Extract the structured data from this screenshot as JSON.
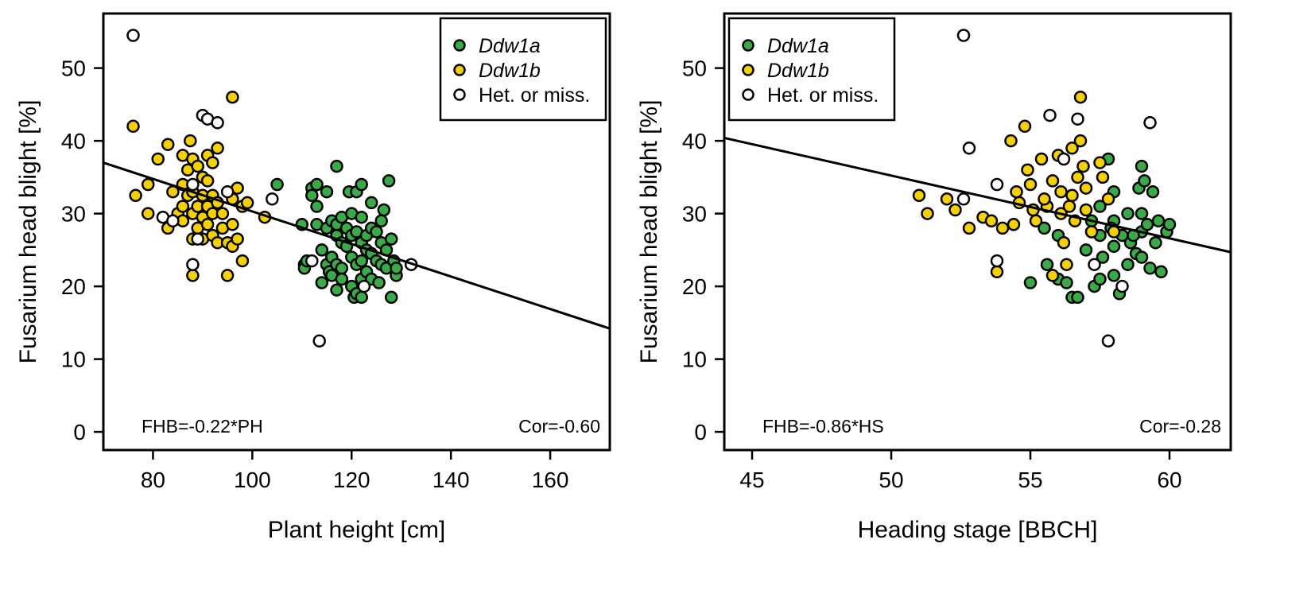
{
  "colors": {
    "Ddw1a": "#3aaa48",
    "Ddw1b": "#f5d000",
    "het": "#ffffff",
    "stroke": "#000000"
  },
  "chart_data": [
    {
      "type": "scatter",
      "xlabel": "Plant height [cm]",
      "ylabel": "Fusarium head blight [%]",
      "xlim": [
        70,
        172
      ],
      "ylim": [
        -2.5,
        57.5
      ],
      "xticks": [
        80,
        100,
        120,
        140,
        160
      ],
      "yticks": [
        0,
        10,
        20,
        30,
        40,
        50
      ],
      "legend": {
        "position": "top-right",
        "entries": [
          {
            "label": "Ddw1a",
            "italic": true,
            "series": "Ddw1a"
          },
          {
            "label": "Ddw1b",
            "italic": true,
            "series": "Ddw1b"
          },
          {
            "label": "Het. or miss.",
            "italic": false,
            "series": "het"
          }
        ]
      },
      "annotations": {
        "equation": "FHB=-0.22*PH",
        "correlation": "Cor=-0.60"
      },
      "regression": {
        "x": [
          70,
          172
        ],
        "y": [
          37.0,
          14.2
        ]
      },
      "series": [
        {
          "key": "Ddw1a",
          "points": [
            [
              105,
              34
            ],
            [
              110,
              28.5
            ],
            [
              110.5,
              23
            ],
            [
              110.5,
              22.5
            ],
            [
              111,
              23.5
            ],
            [
              112,
              33.5
            ],
            [
              112,
              32.5
            ],
            [
              113,
              34
            ],
            [
              113,
              31
            ],
            [
              113,
              28.5
            ],
            [
              114,
              25
            ],
            [
              114,
              20.5
            ],
            [
              115,
              33
            ],
            [
              115,
              28
            ],
            [
              115,
              23
            ],
            [
              115.5,
              22
            ],
            [
              116,
              29
            ],
            [
              116,
              24
            ],
            [
              116,
              21.5
            ],
            [
              117,
              36.5
            ],
            [
              117,
              28.5
            ],
            [
              117,
              27
            ],
            [
              117,
              23
            ],
            [
              117,
              19.5
            ],
            [
              118,
              29.5
            ],
            [
              118,
              26
            ],
            [
              118,
              22.5
            ],
            [
              118,
              21
            ],
            [
              119,
              28
            ],
            [
              119,
              25.5
            ],
            [
              119.5,
              33
            ],
            [
              120,
              30
            ],
            [
              120,
              27
            ],
            [
              120,
              24
            ],
            [
              120,
              20
            ],
            [
              120.5,
              18.5
            ],
            [
              121,
              33
            ],
            [
              121,
              27.5
            ],
            [
              121,
              23
            ],
            [
              121,
              19
            ],
            [
              122,
              34
            ],
            [
              122,
              29.5
            ],
            [
              122,
              26
            ],
            [
              122,
              23.5
            ],
            [
              122,
              21
            ],
            [
              122,
              18.5
            ],
            [
              123,
              27
            ],
            [
              123,
              25
            ],
            [
              123,
              22
            ],
            [
              124,
              31.5
            ],
            [
              124,
              28
            ],
            [
              124,
              24.5
            ],
            [
              124,
              21
            ],
            [
              125,
              27.5
            ],
            [
              125,
              23.5
            ],
            [
              125.5,
              20.5
            ],
            [
              126,
              29
            ],
            [
              126,
              26
            ],
            [
              126,
              23
            ],
            [
              126.5,
              30.5
            ],
            [
              127,
              25
            ],
            [
              127,
              22.5
            ],
            [
              127.5,
              34.5
            ],
            [
              128,
              26.5
            ],
            [
              128,
              18.5
            ],
            [
              128.5,
              23.5
            ],
            [
              129,
              21.5
            ],
            [
              129,
              22.5
            ]
          ]
        },
        {
          "key": "Ddw1b",
          "points": [
            [
              76,
              42
            ],
            [
              76.5,
              32.5
            ],
            [
              79,
              34
            ],
            [
              79,
              30
            ],
            [
              81,
              37.5
            ],
            [
              83,
              39.5
            ],
            [
              83,
              28
            ],
            [
              84,
              33
            ],
            [
              85,
              30
            ],
            [
              86,
              38
            ],
            [
              86,
              34
            ],
            [
              86,
              31
            ],
            [
              86,
              29
            ],
            [
              87,
              36
            ],
            [
              87,
              32.5
            ],
            [
              87.5,
              40
            ],
            [
              88,
              37.5
            ],
            [
              88,
              33
            ],
            [
              88,
              30
            ],
            [
              88,
              26.5
            ],
            [
              88,
              21.5
            ],
            [
              89,
              36.5
            ],
            [
              89,
              31
            ],
            [
              89,
              28
            ],
            [
              90,
              35
            ],
            [
              90,
              32.5
            ],
            [
              90,
              29.5
            ],
            [
              90,
              26.5
            ],
            [
              91,
              38
            ],
            [
              91,
              34.5
            ],
            [
              91,
              31
            ],
            [
              91,
              28.5
            ],
            [
              92,
              37
            ],
            [
              92,
              32.5
            ],
            [
              92,
              30
            ],
            [
              92,
              27
            ],
            [
              93,
              39
            ],
            [
              93,
              31.5
            ],
            [
              93,
              26
            ],
            [
              94,
              30
            ],
            [
              94,
              28
            ],
            [
              95,
              21.5
            ],
            [
              95,
              26
            ],
            [
              96,
              46
            ],
            [
              96,
              32
            ],
            [
              96,
              28.5
            ],
            [
              96,
              25.5
            ],
            [
              97,
              33.5
            ],
            [
              97,
              26.5
            ],
            [
              98,
              31
            ],
            [
              98,
              23.5
            ],
            [
              99,
              31.5
            ],
            [
              102.5,
              29.5
            ]
          ]
        },
        {
          "key": "het",
          "points": [
            [
              76,
              54.5
            ],
            [
              82,
              29.5
            ],
            [
              84,
              29
            ],
            [
              88,
              34
            ],
            [
              88,
              23
            ],
            [
              89,
              26.5
            ],
            [
              90,
              43.5
            ],
            [
              91,
              43
            ],
            [
              93,
              42.5
            ],
            [
              95,
              33
            ],
            [
              104,
              32
            ],
            [
              112,
              23.5
            ],
            [
              113.5,
              12.5
            ],
            [
              122.5,
              20
            ],
            [
              132,
              23
            ]
          ]
        }
      ]
    },
    {
      "type": "scatter",
      "xlabel": "Heading stage [BBCH]",
      "ylabel": "Fusarium head blight [%]",
      "xlim": [
        44,
        62.2
      ],
      "ylim": [
        -2.5,
        57.5
      ],
      "xticks": [
        45,
        50,
        55,
        60
      ],
      "yticks": [
        0,
        10,
        20,
        30,
        40,
        50
      ],
      "legend": {
        "position": "top-left",
        "entries": [
          {
            "label": "Ddw1a",
            "italic": true,
            "series": "Ddw1a"
          },
          {
            "label": "Ddw1b",
            "italic": true,
            "series": "Ddw1b"
          },
          {
            "label": "Het. or miss.",
            "italic": false,
            "series": "het"
          }
        ]
      },
      "annotations": {
        "equation": "FHB=-0.86*HS",
        "correlation": "Cor=-0.28"
      },
      "regression": {
        "x": [
          44,
          62.2
        ],
        "y": [
          40.4,
          24.7
        ]
      },
      "series": [
        {
          "key": "Ddw1a",
          "points": [
            [
              55,
              20.5
            ],
            [
              55.5,
              28
            ],
            [
              55.6,
              23
            ],
            [
              56,
              27
            ],
            [
              56,
              21
            ],
            [
              56.3,
              20.5
            ],
            [
              56.5,
              18.5
            ],
            [
              56.7,
              18.5
            ],
            [
              57,
              25
            ],
            [
              57.2,
              29
            ],
            [
              57.3,
              20
            ],
            [
              57.5,
              31
            ],
            [
              57.5,
              27
            ],
            [
              57.5,
              21
            ],
            [
              57.6,
              24
            ],
            [
              57.8,
              37.5
            ],
            [
              58,
              33
            ],
            [
              58,
              29
            ],
            [
              58,
              25.5
            ],
            [
              58,
              21.5
            ],
            [
              58.2,
              19
            ],
            [
              58.3,
              27
            ],
            [
              58.5,
              30
            ],
            [
              58.5,
              23
            ],
            [
              58.6,
              26
            ],
            [
              58.8,
              24.5
            ],
            [
              58.9,
              33.5
            ],
            [
              59,
              36.5
            ],
            [
              59,
              30
            ],
            [
              59,
              27.5
            ],
            [
              59,
              24
            ],
            [
              59.1,
              34.5
            ],
            [
              59.2,
              28.5
            ],
            [
              59.3,
              22.5
            ],
            [
              59.4,
              33
            ],
            [
              59.5,
              26
            ],
            [
              59.6,
              29
            ],
            [
              59.7,
              22
            ],
            [
              59.9,
              27.5
            ],
            [
              60,
              28.5
            ],
            [
              57.9,
              28
            ],
            [
              58.7,
              27
            ]
          ]
        },
        {
          "key": "Ddw1b",
          "points": [
            [
              51,
              32.5
            ],
            [
              51.3,
              30
            ],
            [
              52,
              32
            ],
            [
              52.3,
              30.5
            ],
            [
              52.8,
              28
            ],
            [
              53.3,
              29.5
            ],
            [
              53.6,
              29
            ],
            [
              53.8,
              22
            ],
            [
              54,
              28
            ],
            [
              54.3,
              40
            ],
            [
              54.5,
              33
            ],
            [
              54.6,
              31.5
            ],
            [
              54.8,
              42
            ],
            [
              54.9,
              36
            ],
            [
              55,
              34
            ],
            [
              55.1,
              30.5
            ],
            [
              55.2,
              29
            ],
            [
              55.4,
              37.5
            ],
            [
              55.6,
              31
            ],
            [
              55.8,
              34.5
            ],
            [
              55.8,
              21.5
            ],
            [
              56,
              38
            ],
            [
              56.1,
              33
            ],
            [
              56.1,
              30
            ],
            [
              56.2,
              26
            ],
            [
              56.3,
              23
            ],
            [
              56.5,
              39
            ],
            [
              56.5,
              32.5
            ],
            [
              56.6,
              29
            ],
            [
              56.8,
              46
            ],
            [
              56.8,
              40
            ],
            [
              56.9,
              36.5
            ],
            [
              57,
              33.5
            ],
            [
              57,
              30.5
            ],
            [
              57.2,
              27.5
            ],
            [
              57.5,
              37
            ],
            [
              57.6,
              35
            ],
            [
              57.8,
              32
            ],
            [
              58,
              27.5
            ],
            [
              56.4,
              31
            ],
            [
              54.4,
              28.5
            ],
            [
              55.5,
              32
            ],
            [
              56.7,
              35
            ]
          ]
        },
        {
          "key": "het",
          "points": [
            [
              52.6,
              54.5
            ],
            [
              52.8,
              39
            ],
            [
              52.6,
              32
            ],
            [
              53.8,
              34
            ],
            [
              53.8,
              23.5
            ],
            [
              55.7,
              43.5
            ],
            [
              56.2,
              37.5
            ],
            [
              56.7,
              43
            ],
            [
              57.3,
              23
            ],
            [
              57.8,
              12.5
            ],
            [
              58.3,
              20
            ],
            [
              59.3,
              42.5
            ]
          ]
        }
      ]
    }
  ]
}
